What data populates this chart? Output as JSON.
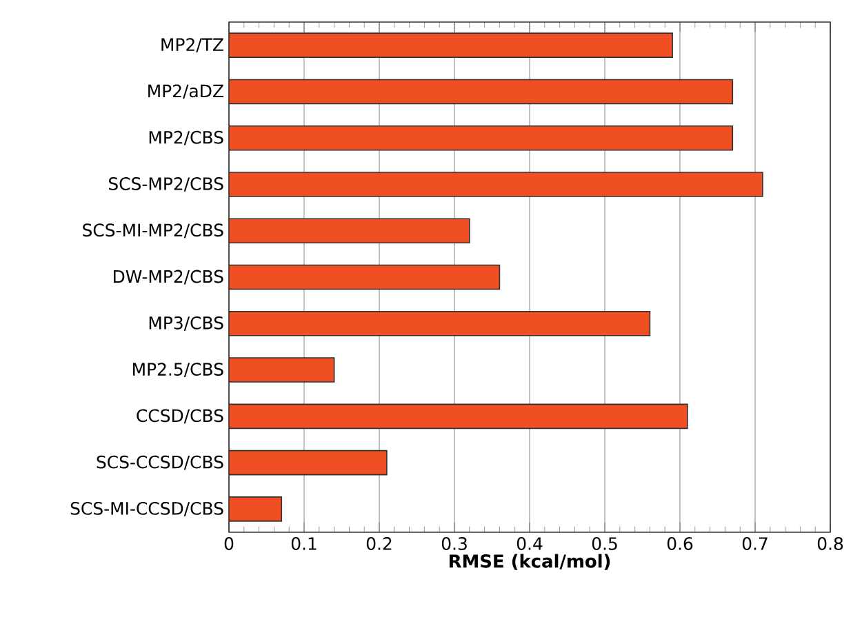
{
  "chart_data": {
    "type": "bar",
    "orientation": "horizontal",
    "xlabel": "RMSE (kcal/mol)",
    "categories": [
      "MP2/TZ",
      "MP2/aDZ",
      "MP2/CBS",
      "SCS-MP2/CBS",
      "SCS-MI-MP2/CBS",
      "DW-MP2/CBS",
      "MP3/CBS",
      "MP2.5/CBS",
      "CCSD/CBS",
      "SCS-CCSD/CBS",
      "SCS-MI-CCSD/CBS"
    ],
    "values": [
      0.59,
      0.67,
      0.67,
      0.71,
      0.32,
      0.36,
      0.56,
      0.14,
      0.61,
      0.21,
      0.07
    ],
    "color": "#f04e23",
    "xlim": [
      0,
      0.8
    ],
    "xticks": [
      0,
      0.1,
      0.2,
      0.3,
      0.4,
      0.5,
      0.6,
      0.7,
      0.8
    ],
    "grid": "x"
  }
}
